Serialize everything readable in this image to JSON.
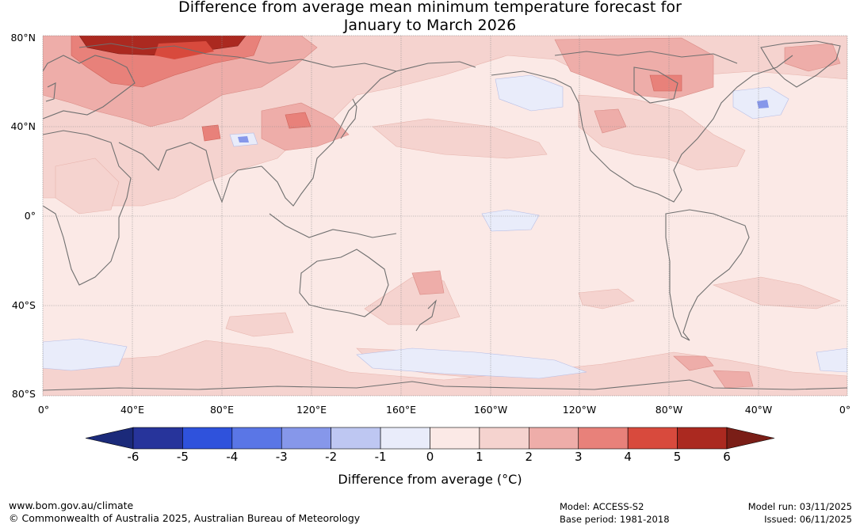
{
  "title": {
    "line1": "Difference from average mean minimum temperature forecast for",
    "line2": "January to March 2026"
  },
  "map": {
    "lat_labels": [
      "80°N",
      "40°N",
      "0°",
      "40°S",
      "80°S"
    ],
    "lon_labels": [
      "0°",
      "40°E",
      "80°E",
      "120°E",
      "160°E",
      "160°W",
      "120°W",
      "80°W",
      "40°W",
      "0°"
    ]
  },
  "colorbar": {
    "ticks": [
      "-6",
      "-5",
      "-4",
      "-3",
      "-2",
      "-1",
      "0",
      "1",
      "2",
      "3",
      "4",
      "5",
      "6"
    ],
    "colors": [
      "#27349b",
      "#2f52dc",
      "#5a76e6",
      "#8697ea",
      "#bec7f2",
      "#e9ecfa",
      "#fbe9e6",
      "#f5d3cf",
      "#eeada9",
      "#e8817a",
      "#d84a3d",
      "#ab2920"
    ],
    "low_extend_color": "#1b2a7a",
    "high_extend_color": "#7a1e17",
    "title": "Difference from average (°C)"
  },
  "footer": {
    "website": "www.bom.gov.au/climate",
    "copyright": "© Commonwealth of Australia 2025, Australian Bureau of Meteorology",
    "model": "Model: ACCESS-S2",
    "base_period": "Base period: 1981-2018",
    "model_run": "Model run: 03/11/2025",
    "issued": "Issued: 06/11/2025"
  }
}
